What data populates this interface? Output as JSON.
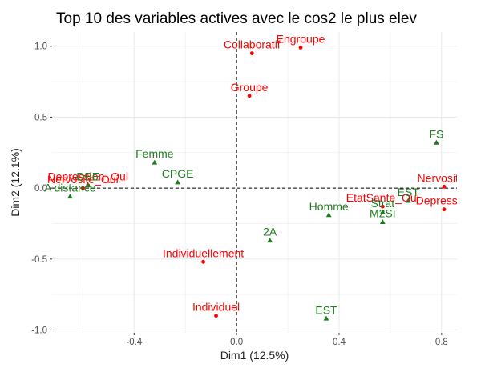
{
  "colors": {
    "panel": "#ffffff",
    "grid": "#ebebeb",
    "ref_line": "#000000",
    "tick": "#333333",
    "series_red": "#ff0000",
    "series_green": "#1e7b1e"
  },
  "chart_data": {
    "type": "scatter",
    "title": "Top 10 des variables actives avec le cos2 le plus elev",
    "xlabel": "Dim1 (12.5%)",
    "ylabel": "Dim2 (12.1%)",
    "xlim": [
      -0.72,
      0.86
    ],
    "ylim": [
      -1.02,
      1.1
    ],
    "x_ticks": [
      -0.4,
      0.0,
      0.4,
      0.8
    ],
    "x_tick_labels": [
      "-0.4",
      "0.0",
      "0.4",
      "0.8"
    ],
    "y_ticks": [
      -1.0,
      -0.5,
      0.0,
      0.5,
      1.0
    ],
    "y_tick_labels": [
      "-1.0",
      "-0.5",
      "0.0",
      "0.5",
      "1.0"
    ],
    "grid": true,
    "reference_lines": [
      {
        "axis": "x",
        "value": 0
      },
      {
        "axis": "y",
        "value": 0
      }
    ],
    "series": [
      {
        "color": "red",
        "marker": "point",
        "points": [
          {
            "label": "Collaboratif",
            "x": 0.06,
            "y": 0.95
          },
          {
            "label": "Engroupe",
            "x": 0.25,
            "y": 0.99
          },
          {
            "label": "Groupe",
            "x": 0.05,
            "y": 0.65
          },
          {
            "label": "Depression_Oui",
            "x": -0.58,
            "y": 0.02
          },
          {
            "label": "Nervosite_Oui",
            "x": -0.6,
            "y": 0.0
          },
          {
            "label": "Nervosite_",
            "x": 0.81,
            "y": 0.01
          },
          {
            "label": "Depression",
            "x": 0.81,
            "y": -0.15
          },
          {
            "label": "EtatSante_Oui",
            "x": 0.57,
            "y": -0.13
          },
          {
            "label": "Individuellement",
            "x": -0.13,
            "y": -0.52
          },
          {
            "label": "Individuel",
            "x": -0.08,
            "y": -0.9
          }
        ]
      },
      {
        "color": "green",
        "marker": "triangle",
        "points": [
          {
            "label": "FS",
            "x": 0.78,
            "y": 0.32
          },
          {
            "label": "Femme",
            "x": -0.32,
            "y": 0.18
          },
          {
            "label": "CPGE",
            "x": -0.23,
            "y": 0.04
          },
          {
            "label": "DBE",
            "x": -0.58,
            "y": 0.02
          },
          {
            "label": "A distance",
            "x": -0.65,
            "y": -0.06
          },
          {
            "label": "Homme",
            "x": 0.36,
            "y": -0.19
          },
          {
            "label": "Strat",
            "x": 0.57,
            "y": -0.17
          },
          {
            "label": "EST",
            "x": 0.67,
            "y": -0.09
          },
          {
            "label": "M2SI",
            "x": 0.57,
            "y": -0.24
          },
          {
            "label": "2A",
            "x": 0.13,
            "y": -0.37
          },
          {
            "label": "EST",
            "x": 0.35,
            "y": -0.92
          }
        ]
      }
    ]
  }
}
